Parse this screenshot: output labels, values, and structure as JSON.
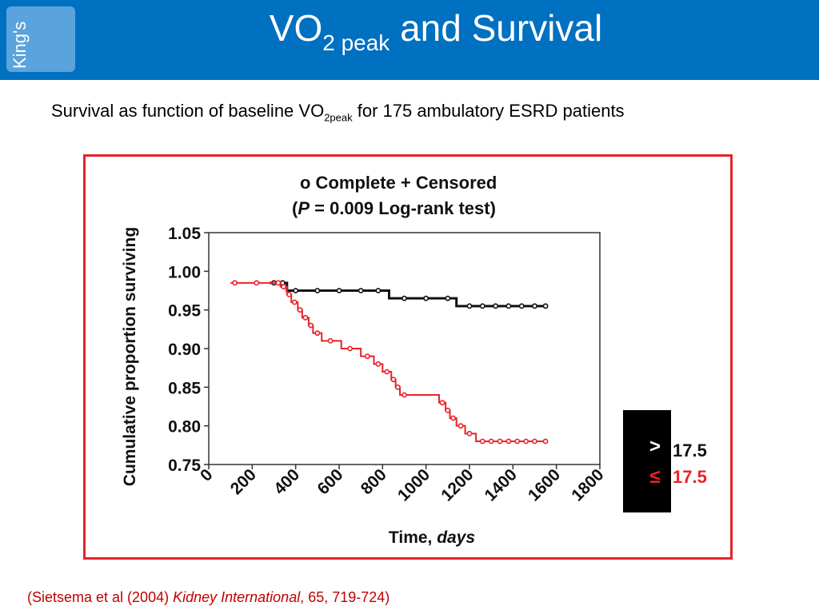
{
  "header": {
    "logo_text": "King's",
    "title_main": "VO",
    "title_sub": "2 peak",
    "title_rest": " and Survival"
  },
  "subtitle": {
    "pre": "Survival as function of baseline VO",
    "sub": "2peak",
    "post": " for 175 ambulatory ESRD patients"
  },
  "chart_data": {
    "type": "line",
    "title": "o  Complete + Censored",
    "subtitle_pre": "(",
    "subtitle_p": "P",
    "subtitle_post": " = 0.009 Log-rank test)",
    "ylabel": "Cumulative proportion surviving",
    "xlabel_pre": "Time, ",
    "xlabel_unit": "days",
    "ylim": [
      0.75,
      1.05
    ],
    "xlim": [
      0,
      1800
    ],
    "yticks": [
      "1.05",
      "1.00",
      "0.95",
      "0.90",
      "0.85",
      "0.80",
      "0.75"
    ],
    "xticks": [
      "0",
      "200",
      "400",
      "600",
      "800",
      "1000",
      "1200",
      "1400",
      "1600",
      "1800"
    ],
    "series": [
      {
        "name": "> 17.5",
        "color": "#111111",
        "points": [
          [
            280,
            0.985
          ],
          [
            360,
            0.985
          ],
          [
            360,
            0.975
          ],
          [
            830,
            0.975
          ],
          [
            830,
            0.965
          ],
          [
            1140,
            0.965
          ],
          [
            1140,
            0.955
          ],
          [
            1560,
            0.955
          ]
        ],
        "markers": [
          [
            300,
            0.985
          ],
          [
            340,
            0.985
          ],
          [
            400,
            0.975
          ],
          [
            500,
            0.975
          ],
          [
            600,
            0.975
          ],
          [
            700,
            0.975
          ],
          [
            780,
            0.975
          ],
          [
            900,
            0.965
          ],
          [
            1000,
            0.965
          ],
          [
            1100,
            0.965
          ],
          [
            1200,
            0.955
          ],
          [
            1260,
            0.955
          ],
          [
            1320,
            0.955
          ],
          [
            1380,
            0.955
          ],
          [
            1440,
            0.955
          ],
          [
            1500,
            0.955
          ],
          [
            1550,
            0.955
          ]
        ]
      },
      {
        "name": "≤ 17.5",
        "color": "#e8232a",
        "points": [
          [
            100,
            0.985
          ],
          [
            330,
            0.985
          ],
          [
            330,
            0.98
          ],
          [
            360,
            0.98
          ],
          [
            360,
            0.97
          ],
          [
            380,
            0.97
          ],
          [
            380,
            0.96
          ],
          [
            410,
            0.96
          ],
          [
            410,
            0.95
          ],
          [
            430,
            0.95
          ],
          [
            430,
            0.94
          ],
          [
            460,
            0.94
          ],
          [
            460,
            0.93
          ],
          [
            480,
            0.93
          ],
          [
            480,
            0.92
          ],
          [
            520,
            0.92
          ],
          [
            520,
            0.91
          ],
          [
            610,
            0.91
          ],
          [
            610,
            0.9
          ],
          [
            700,
            0.9
          ],
          [
            700,
            0.89
          ],
          [
            760,
            0.89
          ],
          [
            760,
            0.88
          ],
          [
            800,
            0.88
          ],
          [
            800,
            0.87
          ],
          [
            840,
            0.87
          ],
          [
            840,
            0.86
          ],
          [
            860,
            0.86
          ],
          [
            860,
            0.85
          ],
          [
            880,
            0.85
          ],
          [
            880,
            0.84
          ],
          [
            1060,
            0.84
          ],
          [
            1060,
            0.83
          ],
          [
            1090,
            0.83
          ],
          [
            1090,
            0.82
          ],
          [
            1110,
            0.82
          ],
          [
            1110,
            0.81
          ],
          [
            1140,
            0.81
          ],
          [
            1140,
            0.8
          ],
          [
            1180,
            0.8
          ],
          [
            1180,
            0.79
          ],
          [
            1230,
            0.79
          ],
          [
            1230,
            0.78
          ],
          [
            1560,
            0.78
          ]
        ],
        "markers": [
          [
            120,
            0.985
          ],
          [
            220,
            0.985
          ],
          [
            320,
            0.985
          ],
          [
            345,
            0.98
          ],
          [
            370,
            0.97
          ],
          [
            395,
            0.96
          ],
          [
            420,
            0.95
          ],
          [
            445,
            0.94
          ],
          [
            470,
            0.93
          ],
          [
            500,
            0.92
          ],
          [
            560,
            0.91
          ],
          [
            650,
            0.9
          ],
          [
            730,
            0.89
          ],
          [
            780,
            0.88
          ],
          [
            820,
            0.87
          ],
          [
            850,
            0.86
          ],
          [
            870,
            0.85
          ],
          [
            900,
            0.84
          ],
          [
            1075,
            0.83
          ],
          [
            1100,
            0.82
          ],
          [
            1125,
            0.81
          ],
          [
            1160,
            0.8
          ],
          [
            1200,
            0.79
          ],
          [
            1260,
            0.78
          ],
          [
            1300,
            0.78
          ],
          [
            1340,
            0.78
          ],
          [
            1380,
            0.78
          ],
          [
            1420,
            0.78
          ],
          [
            1460,
            0.78
          ],
          [
            1500,
            0.78
          ],
          [
            1550,
            0.78
          ]
        ]
      }
    ],
    "legend": [
      {
        "symbol": ">",
        "label": "17.5",
        "color": "#111111"
      },
      {
        "symbol": "≤",
        "label": "17.5",
        "color": "#e8232a"
      }
    ]
  },
  "citation": {
    "pre": "(Sietsema et al (2004) ",
    "journal": "Kidney International",
    "post": ", 65, 719-724)"
  }
}
